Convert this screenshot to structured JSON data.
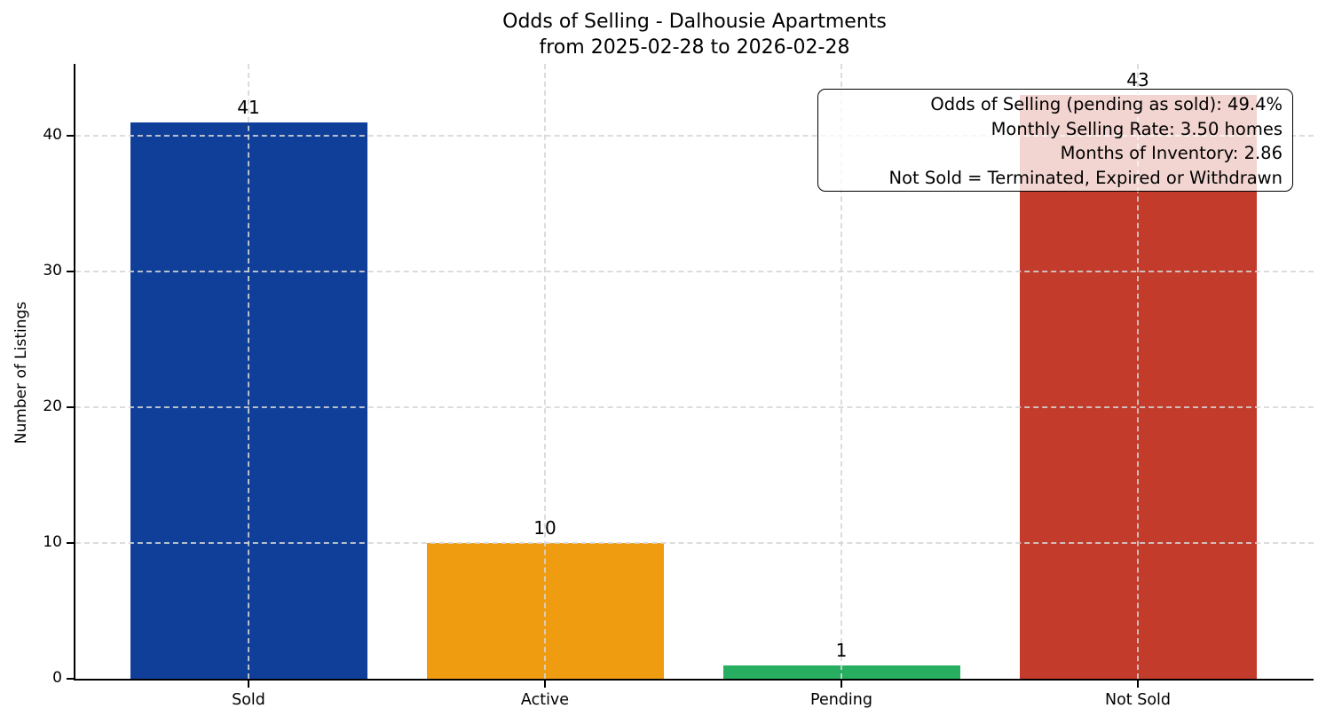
{
  "chart_data": {
    "type": "bar",
    "title": "Odds of Selling - Dalhousie Apartments",
    "subtitle": "from 2025-02-28 to 2026-02-28",
    "ylabel": "Number of Listings",
    "xlabel": "",
    "categories": [
      "Sold",
      "Active",
      "Pending",
      "Not Sold"
    ],
    "values": [
      41,
      10,
      1,
      43
    ],
    "value_labels": [
      "41",
      "10",
      "1",
      "43"
    ],
    "bar_colors": [
      "#103f99",
      "#f09c10",
      "#27ae60",
      "#c23b2b"
    ],
    "yticks": [
      0,
      10,
      20,
      30,
      40
    ],
    "ytick_labels": [
      "0",
      "10",
      "20",
      "30",
      "40"
    ],
    "ylim": [
      0,
      45.3
    ],
    "grid": {
      "visible": true,
      "style": "dashed",
      "horizontal": true,
      "vertical": true,
      "color": "#d6d6d6"
    },
    "legend_position": "none",
    "annotation": {
      "lines": [
        "Odds of Selling (pending as sold): 49.4%",
        "Monthly Selling Rate: 3.50 homes",
        "Months of Inventory: 2.86",
        "Not Sold = Terminated, Expired or Withdrawn"
      ],
      "align": "right",
      "background": "rgba(255,255,255,0.78)",
      "border_color": "#000000"
    }
  }
}
